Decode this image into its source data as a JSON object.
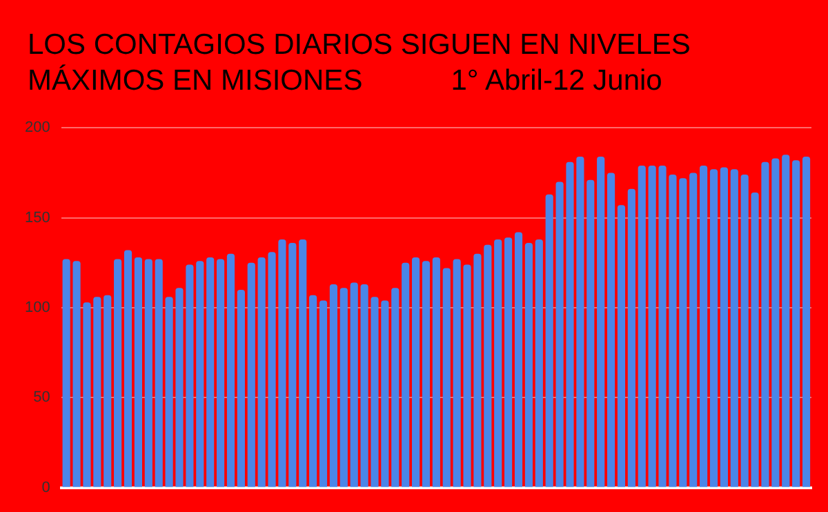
{
  "chart_data": {
    "type": "bar",
    "title": "LOS CONTAGIOS DIARIOS SIGUEN EN NIVELES MÁXIMOS EN MISIONES",
    "subtitle": "1° Abril-12 Junio",
    "categories": [
      null,
      null,
      null,
      null,
      null,
      null,
      null,
      null,
      null,
      null,
      null,
      null,
      null,
      null,
      null,
      null,
      null,
      null,
      null,
      null,
      null,
      null,
      null,
      null,
      null,
      null,
      null,
      null,
      null,
      null,
      null,
      null,
      null,
      null,
      null,
      null,
      null,
      null,
      null,
      null,
      null,
      null,
      null,
      null,
      null,
      null,
      null,
      null,
      null,
      null,
      null,
      null,
      null,
      null,
      null,
      null,
      null,
      null,
      null,
      null,
      null,
      null,
      null,
      null,
      null,
      null,
      null,
      null,
      null,
      null,
      null,
      null,
      null
    ],
    "values": [
      127,
      126,
      103,
      106,
      107,
      127,
      132,
      128,
      127,
      127,
      106,
      111,
      124,
      126,
      128,
      127,
      130,
      110,
      125,
      128,
      131,
      138,
      136,
      138,
      107,
      104,
      113,
      111,
      114,
      113,
      106,
      104,
      111,
      125,
      128,
      126,
      128,
      122,
      127,
      124,
      130,
      135,
      138,
      139,
      142,
      136,
      138,
      163,
      170,
      181,
      184,
      171,
      184,
      175,
      157,
      166,
      179,
      179,
      179,
      174,
      172,
      175,
      179,
      177,
      178,
      177,
      174,
      164,
      181,
      183,
      185,
      182,
      184
    ],
    "color": "#4a86e8",
    "ylim": [
      0,
      200
    ],
    "yticks": [
      0,
      50,
      100,
      150,
      200
    ],
    "grid": "y"
  }
}
